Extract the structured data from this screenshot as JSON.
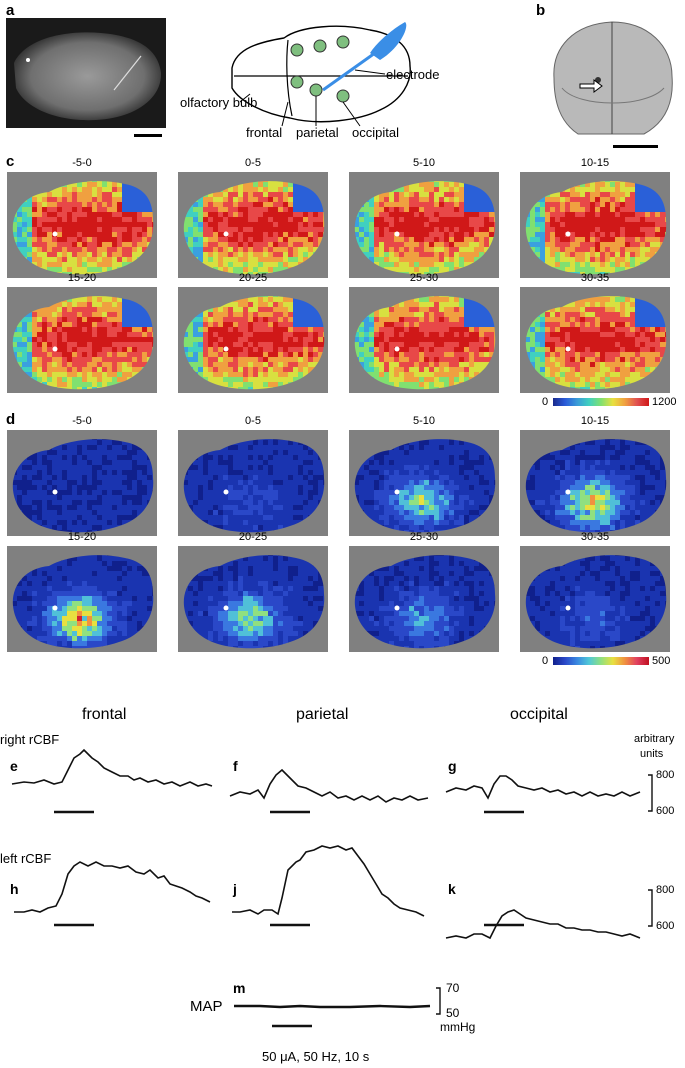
{
  "panel_labels": {
    "a": "a",
    "b": "b",
    "c": "c",
    "d": "d",
    "e": "e",
    "f": "f",
    "g": "g",
    "h": "h",
    "j": "j",
    "k": "k",
    "m": "m"
  },
  "schematic": {
    "olfactory_bulb": "olfactory bulb",
    "frontal": "frontal",
    "parietal": "parietal",
    "occipital": "occipital",
    "electrode": "electrode"
  },
  "time_windows": [
    "-5-0",
    "0-5",
    "5-10",
    "10-15",
    "15-20",
    "20-25",
    "25-30",
    "30-35"
  ],
  "colorbar_c": {
    "min": "0",
    "max": "1200"
  },
  "colorbar_d": {
    "min": "0",
    "max": "500"
  },
  "traces": {
    "regions": {
      "frontal": "frontal",
      "parietal": "parietal",
      "occipital": "occipital"
    },
    "right_row_label": "right rCBF",
    "left_row_label": "left rCBF",
    "map_label": "MAP",
    "units_line1": "arbitrary",
    "units_line2": "units",
    "scale_top": "800",
    "scale_bottom": "600",
    "scale_top2": "800",
    "scale_bottom2": "600",
    "map_top": "70",
    "map_bottom": "50",
    "map_unit": "mmHg",
    "stimulus": "50 μA, 50 Hz, 10 s"
  },
  "colors": {
    "panel_bg": "#808080",
    "electrode": "#3a8ee6",
    "region_dot": "#7fbf7f"
  }
}
